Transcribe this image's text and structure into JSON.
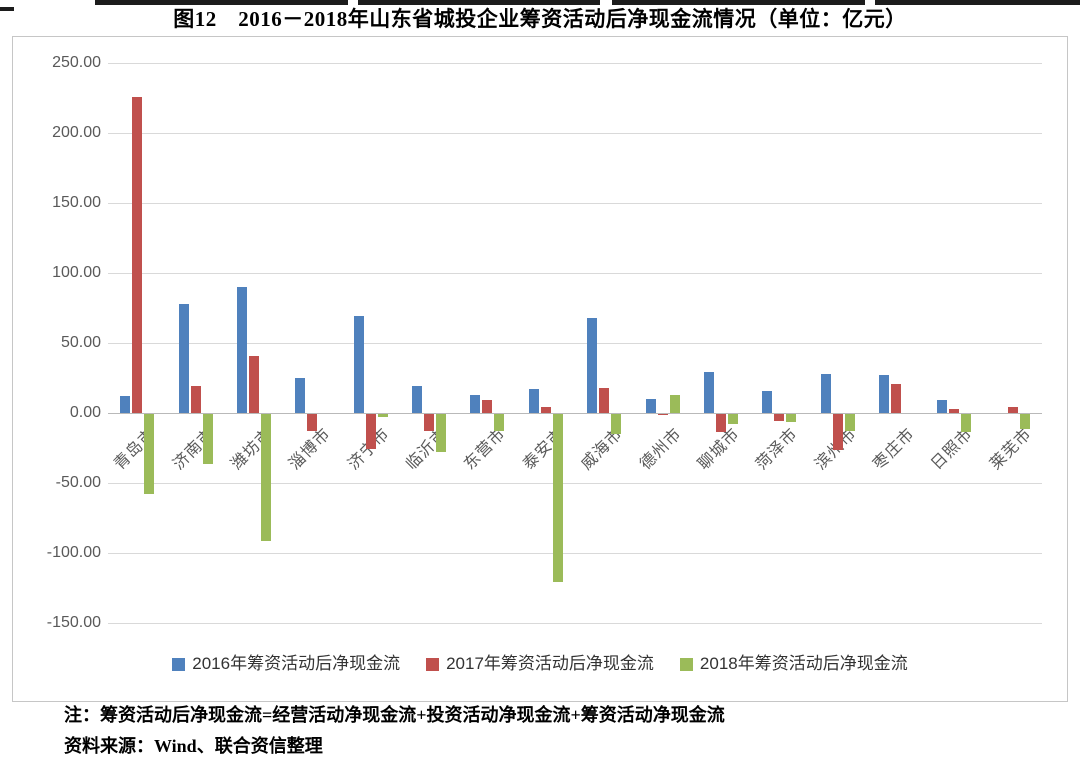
{
  "title": "图12　2016－2018年山东省城投企业筹资活动后净现金流情况（单位：亿元）",
  "chart_data": {
    "type": "bar",
    "title": "图12　2016－2018年山东省城投企业筹资活动后净现金流情况",
    "unit": "亿元",
    "categories": [
      "青岛市",
      "济南市",
      "潍坊市",
      "淄博市",
      "济宁市",
      "临沂市",
      "东营市",
      "泰安市",
      "威海市",
      "德州市",
      "聊城市",
      "菏泽市",
      "滨州市",
      "枣庄市",
      "日照市",
      "莱芜市"
    ],
    "series": [
      {
        "name": "2016年筹资活动后净现金流",
        "color": "#4F81BD",
        "values": [
          12,
          78,
          90,
          25,
          69,
          19,
          13,
          17,
          68,
          10,
          29,
          16,
          28,
          27,
          9,
          0
        ]
      },
      {
        "name": "2017年筹资活动后净现金流",
        "color": "#C0504D",
        "values": [
          226,
          19,
          41,
          -12,
          -25,
          -12,
          9,
          4,
          18,
          -1,
          -13,
          -5,
          -26,
          21,
          3,
          4
        ]
      },
      {
        "name": "2018年筹资活动后净现金流",
        "color": "#9BBB59",
        "values": [
          -57,
          -36,
          -91,
          0,
          -2,
          -27,
          -12,
          -120,
          -14,
          13,
          -7,
          -6,
          -12,
          0,
          -13,
          -11
        ]
      }
    ],
    "ylim": [
      -150,
      250
    ],
    "ytick_step": 50,
    "yticks": [
      250,
      200,
      150,
      100,
      50,
      0,
      -50,
      -100,
      -150
    ],
    "ytick_labels": [
      "250.00",
      "200.00",
      "150.00",
      "100.00",
      "50.00",
      "0.00",
      "-50.00",
      "-100.00",
      "-150.00"
    ],
    "xlabel": "",
    "ylabel": "",
    "grid": true,
    "legend_position": "bottom"
  },
  "notes": {
    "note_line": "注：筹资活动后净现金流=经营活动净现金流+投资活动净现金流+筹资活动净现金流",
    "source_line": "资料来源：Wind、联合资信整理"
  },
  "colors": {
    "series_2016": "#4F81BD",
    "series_2017": "#C0504D",
    "series_2018": "#9BBB59",
    "gridline": "#d9d9d9",
    "axis_text": "#595959",
    "chart_border": "#c6c6c6"
  }
}
